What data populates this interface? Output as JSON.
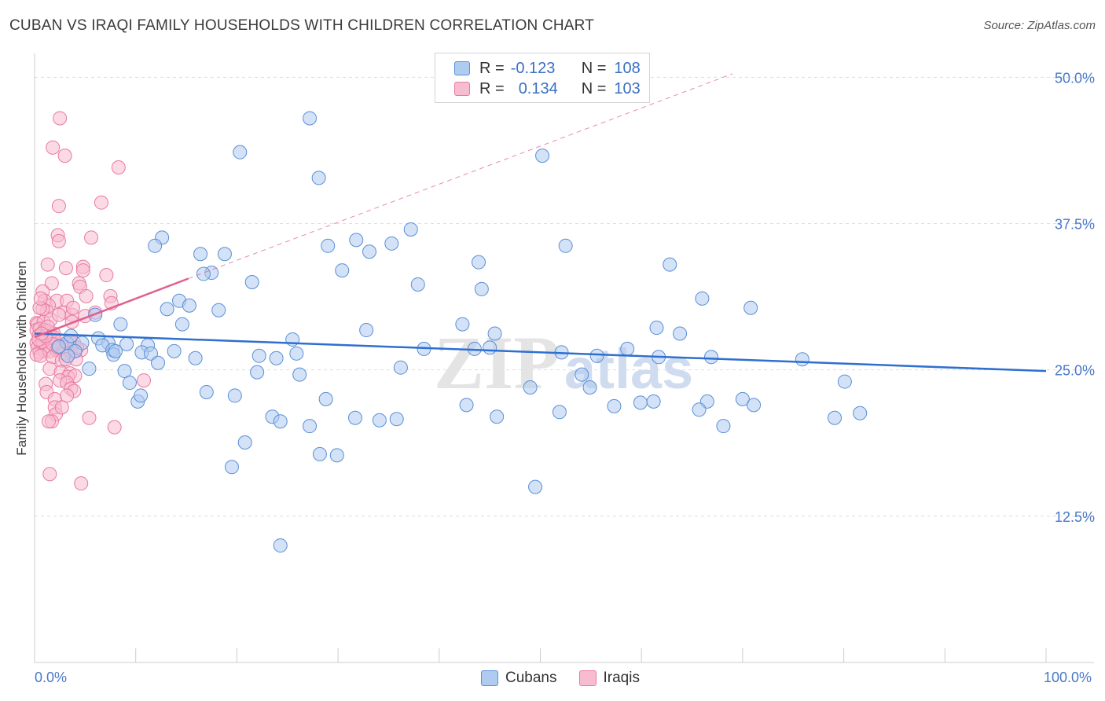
{
  "header": {
    "title": "CUBAN VS IRAQI FAMILY HOUSEHOLDS WITH CHILDREN CORRELATION CHART",
    "source": "Source: ZipAtlas.com"
  },
  "legend": {
    "cubans": {
      "r_label": "R =",
      "r_value": "-0.123",
      "n_label": "N =",
      "n_value": "108"
    },
    "iraqis": {
      "r_label": "R =",
      "r_value": "0.134",
      "n_label": "N =",
      "n_value": "103"
    }
  },
  "bottom_legend": {
    "cubans": "Cubans",
    "iraqis": "Iraqis"
  },
  "watermark": {
    "zip": "ZIP",
    "atlas": "atlas"
  },
  "colors": {
    "cuban_fill": "#aecbf0",
    "cuban_stroke": "#5b8fd6",
    "cuban_line": "#2f6fcf",
    "iraqi_fill": "#f7bcd0",
    "iraqi_stroke": "#e87aa0",
    "iraqi_line": "#e06090",
    "tick_text": "#4a78c8"
  },
  "chart_data": {
    "type": "scatter",
    "title": "CUBAN VS IRAQI FAMILY HOUSEHOLDS WITH CHILDREN CORRELATION CHART",
    "xlabel": "",
    "ylabel": "Family Households with Children",
    "xlim": [
      0,
      100
    ],
    "ylim": [
      0,
      51.5
    ],
    "x_tick_labels": [
      "0.0%",
      "100.0%"
    ],
    "y_ticks": [
      12.5,
      25.0,
      37.5,
      50.0
    ],
    "y_tick_labels": [
      "12.5%",
      "25.0%",
      "37.5%",
      "50.0%"
    ],
    "grid": "horizontal dashed",
    "legend_position": "top-center",
    "series": [
      {
        "name": "Cubans",
        "r": -0.123,
        "n": 108,
        "trend": {
          "x": [
            0,
            100
          ],
          "y": [
            28.1,
            24.9
          ]
        },
        "points": [
          [
            27.2,
            46.5
          ],
          [
            28.1,
            41.4
          ],
          [
            20.3,
            43.6
          ],
          [
            50.2,
            43.3
          ],
          [
            12.6,
            36.3
          ],
          [
            11.9,
            35.6
          ],
          [
            16.4,
            34.9
          ],
          [
            18.8,
            34.9
          ],
          [
            37.2,
            37.0
          ],
          [
            31.8,
            36.1
          ],
          [
            29.0,
            35.6
          ],
          [
            35.3,
            35.8
          ],
          [
            33.1,
            35.1
          ],
          [
            52.5,
            35.6
          ],
          [
            43.9,
            34.2
          ],
          [
            62.8,
            34.0
          ],
          [
            17.5,
            33.3
          ],
          [
            16.7,
            33.2
          ],
          [
            30.4,
            33.5
          ],
          [
            21.5,
            32.5
          ],
          [
            37.9,
            32.3
          ],
          [
            44.2,
            31.9
          ],
          [
            66.0,
            31.1
          ],
          [
            70.8,
            30.3
          ],
          [
            14.3,
            30.9
          ],
          [
            15.3,
            30.5
          ],
          [
            13.1,
            30.2
          ],
          [
            18.2,
            30.1
          ],
          [
            6.0,
            29.7
          ],
          [
            8.5,
            28.9
          ],
          [
            14.6,
            28.9
          ],
          [
            42.3,
            28.9
          ],
          [
            32.8,
            28.4
          ],
          [
            45.5,
            28.1
          ],
          [
            61.5,
            28.6
          ],
          [
            63.8,
            28.1
          ],
          [
            6.3,
            27.7
          ],
          [
            7.3,
            27.3
          ],
          [
            6.7,
            27.1
          ],
          [
            11.2,
            27.1
          ],
          [
            25.5,
            27.6
          ],
          [
            3.2,
            27.3
          ],
          [
            4.7,
            27.3
          ],
          [
            4.0,
            26.6
          ],
          [
            3.3,
            26.2
          ],
          [
            7.7,
            26.7
          ],
          [
            7.8,
            26.3
          ],
          [
            10.6,
            26.5
          ],
          [
            11.5,
            26.4
          ],
          [
            13.8,
            26.6
          ],
          [
            15.9,
            26.0
          ],
          [
            22.2,
            26.2
          ],
          [
            23.9,
            26.0
          ],
          [
            25.9,
            26.4
          ],
          [
            38.5,
            26.8
          ],
          [
            43.5,
            26.8
          ],
          [
            45.0,
            26.9
          ],
          [
            52.1,
            26.5
          ],
          [
            55.6,
            26.2
          ],
          [
            58.6,
            26.8
          ],
          [
            61.7,
            26.1
          ],
          [
            66.9,
            26.1
          ],
          [
            75.9,
            25.9
          ],
          [
            12.2,
            25.6
          ],
          [
            5.4,
            25.1
          ],
          [
            8.9,
            24.9
          ],
          [
            22.0,
            24.8
          ],
          [
            26.2,
            24.6
          ],
          [
            36.2,
            25.2
          ],
          [
            54.1,
            24.6
          ],
          [
            9.4,
            23.9
          ],
          [
            17.0,
            23.1
          ],
          [
            49.0,
            23.5
          ],
          [
            54.9,
            23.5
          ],
          [
            80.1,
            24.0
          ],
          [
            10.2,
            22.3
          ],
          [
            10.5,
            22.8
          ],
          [
            19.8,
            22.8
          ],
          [
            28.8,
            22.5
          ],
          [
            42.7,
            22.0
          ],
          [
            51.9,
            21.4
          ],
          [
            57.3,
            21.9
          ],
          [
            59.9,
            22.2
          ],
          [
            61.2,
            22.3
          ],
          [
            66.5,
            22.3
          ],
          [
            65.7,
            21.6
          ],
          [
            70.0,
            22.5
          ],
          [
            71.1,
            22.0
          ],
          [
            23.5,
            21.0
          ],
          [
            24.3,
            20.6
          ],
          [
            31.7,
            20.9
          ],
          [
            27.2,
            20.2
          ],
          [
            34.1,
            20.7
          ],
          [
            35.8,
            20.8
          ],
          [
            45.7,
            21.0
          ],
          [
            68.1,
            20.2
          ],
          [
            79.1,
            20.9
          ],
          [
            81.6,
            21.3
          ],
          [
            20.8,
            18.8
          ],
          [
            28.2,
            17.8
          ],
          [
            29.9,
            17.7
          ],
          [
            19.5,
            16.7
          ],
          [
            49.5,
            15.0
          ],
          [
            24.3,
            10.0
          ],
          [
            3.6,
            27.9
          ],
          [
            9.1,
            27.2
          ],
          [
            8.0,
            26.6
          ],
          [
            2.4,
            27.0
          ]
        ]
      },
      {
        "name": "Iraqis",
        "r": 0.134,
        "n": 103,
        "trend": {
          "x": [
            0,
            15.2
          ],
          "y": [
            27.8,
            32.8
          ],
          "extended": {
            "x": [
              15.2,
              69.0
            ],
            "y": [
              32.8,
              50.3
            ]
          }
        },
        "points": [
          [
            2.5,
            46.5
          ],
          [
            1.8,
            44.0
          ],
          [
            3.0,
            43.3
          ],
          [
            8.3,
            42.3
          ],
          [
            6.6,
            39.3
          ],
          [
            2.4,
            39.0
          ],
          [
            5.6,
            36.3
          ],
          [
            2.3,
            36.5
          ],
          [
            2.4,
            36.0
          ],
          [
            1.3,
            34.0
          ],
          [
            3.1,
            33.7
          ],
          [
            4.8,
            33.8
          ],
          [
            4.8,
            33.5
          ],
          [
            7.1,
            33.1
          ],
          [
            1.7,
            32.4
          ],
          [
            4.4,
            32.4
          ],
          [
            0.8,
            31.7
          ],
          [
            4.5,
            32.1
          ],
          [
            5.1,
            31.3
          ],
          [
            7.5,
            31.3
          ],
          [
            1.0,
            30.9
          ],
          [
            2.2,
            30.9
          ],
          [
            3.2,
            30.9
          ],
          [
            7.6,
            30.7
          ],
          [
            1.4,
            30.5
          ],
          [
            1.2,
            30.0
          ],
          [
            0.8,
            30.2
          ],
          [
            0.5,
            30.3
          ],
          [
            2.9,
            29.9
          ],
          [
            3.7,
            29.7
          ],
          [
            5.0,
            29.6
          ],
          [
            0.2,
            29.0
          ],
          [
            0.3,
            28.9
          ],
          [
            0.9,
            29.1
          ],
          [
            1.6,
            29.3
          ],
          [
            3.7,
            29.1
          ],
          [
            6.0,
            29.9
          ],
          [
            0.2,
            28.4
          ],
          [
            0.5,
            28.5
          ],
          [
            1.0,
            28.4
          ],
          [
            1.3,
            28.3
          ],
          [
            1.9,
            28.1
          ],
          [
            0.4,
            27.9
          ],
          [
            0.8,
            27.7
          ],
          [
            1.1,
            27.6
          ],
          [
            1.6,
            27.8
          ],
          [
            2.6,
            27.5
          ],
          [
            3.5,
            27.4
          ],
          [
            0.2,
            27.3
          ],
          [
            0.6,
            27.2
          ],
          [
            1.3,
            27.0
          ],
          [
            2.1,
            27.1
          ],
          [
            2.8,
            27.0
          ],
          [
            0.3,
            26.9
          ],
          [
            0.5,
            26.5
          ],
          [
            1.0,
            26.6
          ],
          [
            1.5,
            26.6
          ],
          [
            2.2,
            26.7
          ],
          [
            2.9,
            26.4
          ],
          [
            3.6,
            26.5
          ],
          [
            4.6,
            26.7
          ],
          [
            0.2,
            26.3
          ],
          [
            0.6,
            26.2
          ],
          [
            1.8,
            26.1
          ],
          [
            2.7,
            25.8
          ],
          [
            3.1,
            25.9
          ],
          [
            4.1,
            25.9
          ],
          [
            1.5,
            25.1
          ],
          [
            2.6,
            24.8
          ],
          [
            3.5,
            24.7
          ],
          [
            3.3,
            24.4
          ],
          [
            4.0,
            24.5
          ],
          [
            2.5,
            24.1
          ],
          [
            3.2,
            23.9
          ],
          [
            10.8,
            24.1
          ],
          [
            1.1,
            23.8
          ],
          [
            3.6,
            23.4
          ],
          [
            3.9,
            23.2
          ],
          [
            1.2,
            23.1
          ],
          [
            2.0,
            22.5
          ],
          [
            3.2,
            22.8
          ],
          [
            2.0,
            21.8
          ],
          [
            2.1,
            21.2
          ],
          [
            2.7,
            21.8
          ],
          [
            5.4,
            20.9
          ],
          [
            1.7,
            20.6
          ],
          [
            1.4,
            20.6
          ],
          [
            7.9,
            20.1
          ],
          [
            1.5,
            16.1
          ],
          [
            4.6,
            15.3
          ],
          [
            0.8,
            27.4
          ],
          [
            1.9,
            27.8
          ],
          [
            3.9,
            27.3
          ],
          [
            1.3,
            28.7
          ],
          [
            2.4,
            29.7
          ],
          [
            0.6,
            31.1
          ],
          [
            4.2,
            26.9
          ],
          [
            3.8,
            30.3
          ],
          [
            0.4,
            27.6
          ],
          [
            1.8,
            27.2
          ],
          [
            2.3,
            26.9
          ],
          [
            1.1,
            27.9
          ],
          [
            0.7,
            28.1
          ]
        ]
      }
    ]
  }
}
